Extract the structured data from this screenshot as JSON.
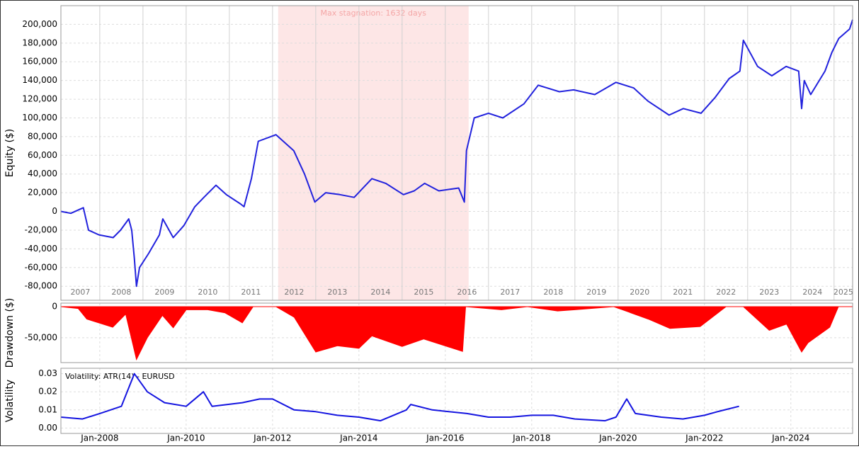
{
  "chart_data": [
    {
      "type": "line",
      "ylabel": "Equity ($)",
      "color": "#2222dd",
      "xlim": [
        2007.1,
        2025.43
      ],
      "ylim": [
        -95000,
        220000
      ],
      "xticks": [
        2007,
        2008,
        2009,
        2010,
        2011,
        2012,
        2013,
        2014,
        2015,
        2016,
        2017,
        2018,
        2019,
        2020,
        2021,
        2022,
        2023,
        2024,
        2025
      ],
      "yticks": [
        {
          "value": -80000,
          "label": "-80,000"
        },
        {
          "value": -60000,
          "label": "-60,000"
        },
        {
          "value": -40000,
          "label": "-40,000"
        },
        {
          "value": -20000,
          "label": "-20,000"
        },
        0,
        {
          "value": 20000,
          "label": "20,000"
        },
        {
          "value": 40000,
          "label": "40,000"
        },
        {
          "value": 60000,
          "label": "60,000"
        },
        {
          "value": 80000,
          "label": "80,000"
        },
        {
          "value": 100000,
          "label": "100,000"
        },
        {
          "value": 120000,
          "label": "120,000"
        },
        {
          "value": 140000,
          "label": "140,000"
        },
        {
          "value": 160000,
          "label": "160,000"
        },
        {
          "value": 180000,
          "label": "180,000"
        },
        {
          "value": 200000,
          "label": "200,000"
        }
      ],
      "highlight": {
        "start": 2012.13,
        "end": 2016.54,
        "label": "Max stagnation: 1632 days",
        "color": "#fde6e6"
      },
      "x": [
        2007.1,
        2007.33,
        2007.62,
        2007.74,
        2007.98,
        2008.31,
        2008.48,
        2008.67,
        2008.74,
        2008.8,
        2008.85,
        2008.92,
        2009.13,
        2009.38,
        2009.46,
        2009.7,
        2009.95,
        2010.2,
        2010.41,
        2010.69,
        2010.93,
        2011.26,
        2011.34,
        2011.51,
        2011.67,
        2012.08,
        2012.49,
        2012.74,
        2012.98,
        2013.23,
        2013.56,
        2013.89,
        2014.3,
        2014.62,
        2015.03,
        2015.28,
        2015.52,
        2015.85,
        2016.31,
        2016.44,
        2016.49,
        2016.67,
        2017.0,
        2017.33,
        2017.82,
        2018.15,
        2018.64,
        2018.97,
        2019.46,
        2019.95,
        2020.36,
        2020.69,
        2021.18,
        2021.51,
        2021.92,
        2022.25,
        2022.57,
        2022.82,
        2022.9,
        2023.23,
        2023.56,
        2023.89,
        2024.18,
        2024.25,
        2024.31,
        2024.46,
        2024.79,
        2024.95,
        2025.11,
        2025.36,
        2025.43
      ],
      "values": [
        0,
        -2000,
        4000,
        -20000,
        -25000,
        -28000,
        -20000,
        -8000,
        -20000,
        -50000,
        -80000,
        -60000,
        -45000,
        -25000,
        -8000,
        -28000,
        -15000,
        5000,
        15000,
        28000,
        18000,
        8000,
        5000,
        35000,
        75000,
        82000,
        65000,
        40000,
        10000,
        20000,
        18000,
        15000,
        35000,
        30000,
        18000,
        22000,
        30000,
        22000,
        25000,
        10000,
        65000,
        100000,
        105000,
        100000,
        115000,
        135000,
        128000,
        130000,
        125000,
        138000,
        132000,
        118000,
        103000,
        110000,
        105000,
        122000,
        142000,
        150000,
        183000,
        155000,
        145000,
        155000,
        150000,
        110000,
        140000,
        125000,
        150000,
        170000,
        185000,
        195000,
        205000
      ]
    },
    {
      "type": "area",
      "ylabel": "Drawdown ($)",
      "color": "#ff0000",
      "xlim": [
        2007.1,
        2025.43
      ],
      "ylim": [
        -90000,
        5700
      ],
      "yticks": [
        {
          "value": -50000,
          "label": "-50,000"
        },
        0
      ],
      "x": [
        2007.1,
        2007.5,
        2007.7,
        2008.3,
        2008.6,
        2008.85,
        2009.1,
        2009.45,
        2009.7,
        2010.0,
        2010.5,
        2010.9,
        2011.3,
        2011.55,
        2012.08,
        2012.5,
        2013.0,
        2013.5,
        2014.0,
        2014.3,
        2015.0,
        2015.5,
        2016.4,
        2016.47,
        2017.3,
        2017.9,
        2018.6,
        2019.0,
        2019.9,
        2020.7,
        2021.2,
        2021.9,
        2022.5,
        2022.9,
        2023.5,
        2023.9,
        2024.25,
        2024.4,
        2024.9,
        2025.1,
        2025.43
      ],
      "values": [
        0,
        -3000,
        -20000,
        -33000,
        -12000,
        -85000,
        -50000,
        -14000,
        -34000,
        -5000,
        -5000,
        -10000,
        -26000,
        0,
        0,
        -17000,
        -73000,
        -63000,
        -67000,
        -47000,
        -64000,
        -52000,
        -72000,
        0,
        -5000,
        0,
        -7000,
        -5000,
        0,
        -20000,
        -35000,
        -32000,
        0,
        0,
        -38000,
        -28000,
        -73000,
        -58000,
        -33000,
        0,
        0
      ]
    },
    {
      "type": "line",
      "ylabel": "Volatility",
      "annotation": "Volatility: ATR(14) - EURUSD",
      "color": "#1515e0",
      "xlim": [
        2007.1,
        2025.43
      ],
      "ylim": [
        -0.003,
        0.033
      ],
      "xticks": [
        {
          "value": 2008,
          "label": "Jan-2008"
        },
        {
          "value": 2010,
          "label": "Jan-2010"
        },
        {
          "value": 2012,
          "label": "Jan-2012"
        },
        {
          "value": 2014,
          "label": "Jan-2014"
        },
        {
          "value": 2016,
          "label": "Jan-2016"
        },
        {
          "value": 2018,
          "label": "Jan-2018"
        },
        {
          "value": 2020,
          "label": "Jan-2020"
        },
        {
          "value": 2022,
          "label": "Jan-2022"
        },
        {
          "value": 2024,
          "label": "Jan-2024"
        }
      ],
      "yticks": [
        {
          "value": 0,
          "label": "0.00"
        },
        0.01,
        0.02,
        0.03
      ],
      "x": [
        2007.1,
        2007.6,
        2008.0,
        2008.5,
        2008.8,
        2009.1,
        2009.5,
        2010.0,
        2010.4,
        2010.6,
        2011.3,
        2011.7,
        2012.0,
        2012.5,
        2013.0,
        2013.5,
        2014.0,
        2014.5,
        2015.1,
        2015.2,
        2015.7,
        2016.5,
        2017.0,
        2017.5,
        2018.0,
        2018.5,
        2019.0,
        2019.7,
        2019.95,
        2020.2,
        2020.4,
        2021.0,
        2021.5,
        2022.0,
        2022.3,
        2022.8
      ],
      "values": [
        0.006,
        0.005,
        0.008,
        0.012,
        0.03,
        0.02,
        0.014,
        0.012,
        0.02,
        0.012,
        0.014,
        0.016,
        0.016,
        0.01,
        0.009,
        0.007,
        0.006,
        0.004,
        0.01,
        0.013,
        0.01,
        0.008,
        0.006,
        0.006,
        0.007,
        0.007,
        0.005,
        0.004,
        0.006,
        0.016,
        0.008,
        0.006,
        0.005,
        0.007,
        0.009,
        0.012
      ]
    }
  ]
}
